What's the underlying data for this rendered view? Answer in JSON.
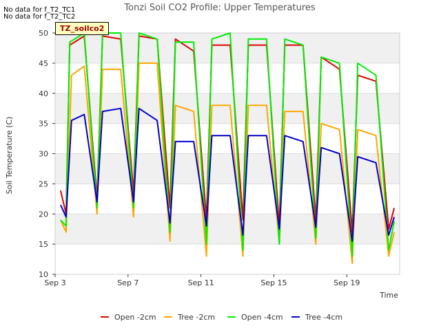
{
  "notes": [
    "No data for f_T2_TC1",
    "No data for f_T2_TC2"
  ],
  "tag_label": "TZ_soilco2",
  "chart_data": {
    "type": "line",
    "title": "Tonzi Soil CO2 Profile: Upper Temperatures",
    "xlabel": "Time",
    "ylabel": "Soil Temperature (C)",
    "xlim": [
      3,
      21.9
    ],
    "ylim": [
      10,
      50
    ],
    "x_ticks": [
      {
        "value": 3,
        "label": "Sep 3"
      },
      {
        "value": 7,
        "label": "Sep 7"
      },
      {
        "value": 11,
        "label": "Sep 11"
      },
      {
        "value": 15,
        "label": "Sep 15"
      },
      {
        "value": 19,
        "label": "Sep 19"
      }
    ],
    "y_ticks": [
      10,
      15,
      20,
      25,
      30,
      35,
      40,
      45,
      50
    ],
    "grid": true,
    "legend_position": "bottom",
    "series": [
      {
        "name": "Open -2cm",
        "color": "#e00000",
        "x": [
          3.3,
          3.6,
          3.8,
          4.6,
          5.3,
          5.6,
          6.6,
          7.3,
          7.6,
          8.6,
          9.3,
          9.6,
          10.6,
          11.3,
          11.6,
          12.6,
          13.3,
          13.6,
          14.6,
          15.3,
          15.6,
          16.6,
          17.3,
          17.6,
          18.6,
          19.3,
          19.6,
          20.6,
          21.3,
          21.6
        ],
        "y": [
          23.9,
          20,
          48,
          49.5,
          22.5,
          49.5,
          49,
          23.5,
          49.5,
          49,
          21,
          49,
          47,
          19,
          48,
          48,
          19,
          48,
          48,
          18,
          48,
          48,
          19,
          46,
          44,
          17,
          43,
          42,
          17.5,
          21
        ]
      },
      {
        "name": "Tree -2cm",
        "color": "#ffa500",
        "x": [
          3.3,
          3.6,
          3.9,
          4.6,
          5.3,
          5.6,
          6.6,
          7.3,
          7.6,
          8.6,
          9.3,
          9.6,
          10.6,
          11.3,
          11.6,
          12.6,
          13.3,
          13.6,
          14.6,
          15.3,
          15.6,
          16.6,
          17.3,
          17.6,
          18.6,
          19.3,
          19.6,
          20.6,
          21.3,
          21.6
        ],
        "y": [
          19,
          17,
          43,
          44.5,
          20,
          44,
          44,
          19.5,
          45,
          45,
          15.5,
          38,
          37,
          13,
          38,
          38,
          13,
          38,
          38,
          15,
          37,
          37,
          15,
          35,
          34,
          11.8,
          34,
          33,
          13,
          17
        ]
      },
      {
        "name": "Open -4cm",
        "color": "#00ee00",
        "x": [
          3.3,
          3.6,
          3.8,
          4.6,
          5.3,
          5.6,
          6.6,
          7.3,
          7.6,
          8.6,
          9.3,
          9.6,
          10.6,
          11.3,
          11.6,
          12.6,
          13.3,
          13.6,
          14.6,
          15.3,
          15.6,
          16.6,
          17.3,
          17.6,
          18.6,
          19.3,
          19.6,
          20.6,
          21.3,
          21.6
        ],
        "y": [
          19,
          18,
          48.5,
          50,
          21,
          50,
          50,
          21,
          50,
          49,
          17,
          48.5,
          48.5,
          15,
          49,
          50,
          14,
          49,
          49,
          15,
          49,
          48,
          16,
          46,
          45,
          13,
          45,
          43,
          14,
          18.8
        ]
      },
      {
        "name": "Tree -4cm",
        "color": "#0000cc",
        "x": [
          3.3,
          3.6,
          3.9,
          4.6,
          5.3,
          5.6,
          6.6,
          7.3,
          7.6,
          8.6,
          9.3,
          9.6,
          10.6,
          11.3,
          11.6,
          12.6,
          13.3,
          13.6,
          14.6,
          15.3,
          15.6,
          16.6,
          17.3,
          17.6,
          18.6,
          19.3,
          19.6,
          20.6,
          21.3,
          21.6
        ],
        "y": [
          21.5,
          19.5,
          35.5,
          36.5,
          22,
          37,
          37.5,
          22,
          37.5,
          35.5,
          18.5,
          32,
          32,
          18,
          33,
          33,
          16.5,
          33,
          33,
          17.5,
          33,
          32,
          17.8,
          31,
          30,
          15.5,
          29.5,
          28.5,
          16.5,
          19.5
        ]
      }
    ]
  }
}
